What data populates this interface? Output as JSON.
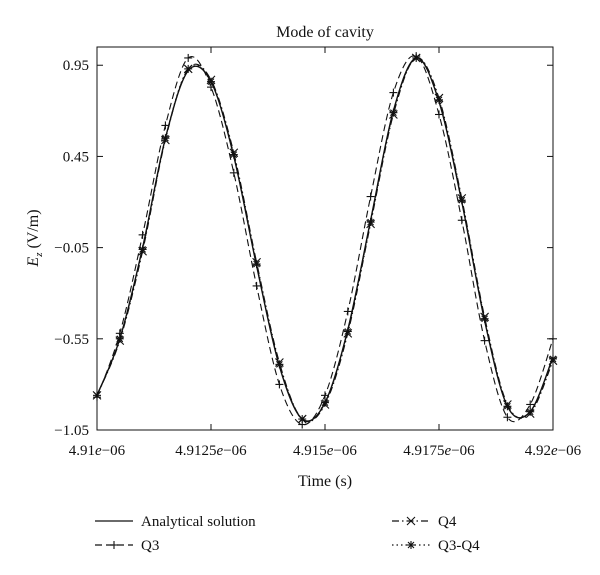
{
  "chart_data": {
    "type": "line",
    "title": "Mode of cavity",
    "xlabel": "Time (s)",
    "ylabel_main": "E",
    "ylabel_sub": "z",
    "ylabel_unit": " (V/m)",
    "xlim": [
      4.91e-06,
      4.92e-06
    ],
    "ylim": [
      -1.05,
      1.05
    ],
    "xticks": [
      {
        "value": 4.91e-06,
        "label_base": "4.91",
        "label_exp": "e",
        "label_tail": "−06"
      },
      {
        "value": 4.9125e-06,
        "label_base": "4.9125",
        "label_exp": "e",
        "label_tail": "−06"
      },
      {
        "value": 4.915e-06,
        "label_base": "4.915",
        "label_exp": "e",
        "label_tail": "−06"
      },
      {
        "value": 4.9175e-06,
        "label_base": "4.9175",
        "label_exp": "e",
        "label_tail": "−06"
      },
      {
        "value": 4.92e-06,
        "label_base": "4.92",
        "label_exp": "e",
        "label_tail": "−06"
      }
    ],
    "yticks": [
      {
        "value": 0.95,
        "label": "0.95"
      },
      {
        "value": 0.45,
        "label": "0.45"
      },
      {
        "value": -0.05,
        "label": "−0.05"
      },
      {
        "value": -0.55,
        "label": "−0.55"
      },
      {
        "value": -1.05,
        "label": "−1.05"
      }
    ],
    "grid": false,
    "legend_position": "bottom",
    "series": [
      {
        "name": "Analytical solution",
        "style": "solid",
        "marker": "none",
        "x": [
          4.91e-06,
          4.9105e-06,
          4.911e-06,
          4.9115e-06,
          4.912e-06,
          4.9125e-06,
          4.913e-06,
          4.9135e-06,
          4.914e-06,
          4.9145e-06,
          4.915e-06,
          4.9155e-06,
          4.916e-06,
          4.9165e-06,
          4.917e-06,
          4.9175e-06,
          4.918e-06,
          4.9185e-06,
          4.919e-06,
          4.9195e-06,
          4.92e-06
        ],
        "y": [
          -0.86,
          -0.55,
          -0.05,
          0.55,
          0.92,
          0.86,
          0.45,
          -0.15,
          -0.7,
          -0.99,
          -0.9,
          -0.5,
          0.1,
          0.7,
          0.99,
          0.75,
          0.2,
          -0.45,
          -0.92,
          -0.95,
          -0.65
        ]
      },
      {
        "name": "Q3",
        "style": "dashed",
        "marker": "plus",
        "x": [
          4.91e-06,
          4.9105e-06,
          4.911e-06,
          4.9115e-06,
          4.912e-06,
          4.9125e-06,
          4.913e-06,
          4.9135e-06,
          4.914e-06,
          4.9145e-06,
          4.915e-06,
          4.9155e-06,
          4.916e-06,
          4.9165e-06,
          4.917e-06,
          4.9175e-06,
          4.918e-06,
          4.9185e-06,
          4.919e-06,
          4.9195e-06,
          4.92e-06
        ],
        "y": [
          -0.87,
          -0.52,
          0.02,
          0.62,
          0.99,
          0.83,
          0.36,
          -0.26,
          -0.8,
          -1.02,
          -0.86,
          -0.4,
          0.23,
          0.8,
          1.0,
          0.68,
          0.1,
          -0.56,
          -0.98,
          -0.91,
          -0.55
        ]
      },
      {
        "name": "Q4",
        "style": "dashdot",
        "marker": "x",
        "x": [
          4.91e-06,
          4.9105e-06,
          4.911e-06,
          4.9115e-06,
          4.912e-06,
          4.9125e-06,
          4.913e-06,
          4.9135e-06,
          4.914e-06,
          4.9145e-06,
          4.915e-06,
          4.9155e-06,
          4.916e-06,
          4.9165e-06,
          4.917e-06,
          4.9175e-06,
          4.918e-06,
          4.9185e-06,
          4.919e-06,
          4.9195e-06,
          4.92e-06
        ],
        "y": [
          -0.86,
          -0.56,
          -0.07,
          0.54,
          0.93,
          0.87,
          0.47,
          -0.13,
          -0.68,
          -0.99,
          -0.91,
          -0.52,
          0.08,
          0.68,
          0.99,
          0.77,
          0.22,
          -0.43,
          -0.91,
          -0.96,
          -0.67
        ]
      },
      {
        "name": "Q3-Q4",
        "style": "dotted",
        "marker": "star",
        "x": [
          4.91e-06,
          4.9105e-06,
          4.911e-06,
          4.9115e-06,
          4.912e-06,
          4.9125e-06,
          4.913e-06,
          4.9135e-06,
          4.914e-06,
          4.9145e-06,
          4.915e-06,
          4.9155e-06,
          4.916e-06,
          4.9165e-06,
          4.917e-06,
          4.9175e-06,
          4.918e-06,
          4.9185e-06,
          4.919e-06,
          4.9195e-06,
          4.92e-06
        ],
        "y": [
          -0.86,
          -0.55,
          -0.06,
          0.55,
          0.93,
          0.86,
          0.46,
          -0.14,
          -0.69,
          -0.99,
          -0.9,
          -0.51,
          0.09,
          0.69,
          0.99,
          0.76,
          0.21,
          -0.44,
          -0.92,
          -0.95,
          -0.66
        ]
      }
    ]
  }
}
